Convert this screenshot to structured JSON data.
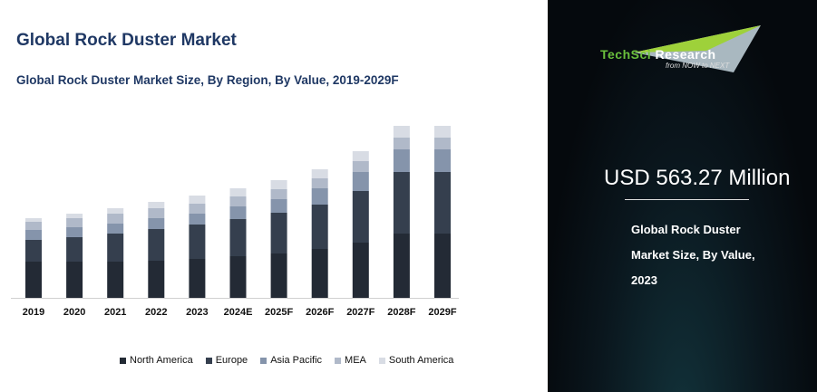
{
  "header": {
    "title": "Global Rock Duster Market",
    "subtitle": "Global Rock Duster Market Size, By Region, By Value, 2019-2029F"
  },
  "chart_data": {
    "type": "bar",
    "stacked": true,
    "title": "Global Rock Duster Market Size, By Region, By Value, 2019-2029F",
    "categories": [
      "2019",
      "2020",
      "2021",
      "2022",
      "2023",
      "2024E",
      "2025F",
      "2026F",
      "2027F",
      "2028F",
      "2029F"
    ],
    "series": [
      {
        "name": "North America",
        "color": "#232a35",
        "values": [
          40,
          40,
          40,
          41,
          43,
          46,
          49,
          54,
          61,
          71,
          71
        ]
      },
      {
        "name": "Europe",
        "color": "#353f4e",
        "values": [
          24,
          27,
          31,
          35,
          38,
          41,
          45,
          49,
          57,
          68,
          68
        ]
      },
      {
        "name": "Asia Pacific",
        "color": "#8594ab",
        "values": [
          11,
          11,
          11,
          12,
          12,
          14,
          15,
          18,
          21,
          25,
          25
        ]
      },
      {
        "name": "MEA",
        "color": "#b0b9c9",
        "values": [
          9,
          10,
          11,
          11,
          11,
          11,
          11,
          11,
          12,
          13,
          13
        ]
      },
      {
        "name": "South America",
        "color": "#d8dce4",
        "values": [
          4,
          5,
          6,
          7,
          9,
          9,
          10,
          10,
          11,
          13,
          13
        ]
      }
    ],
    "yaxis_shown": false,
    "grid": false,
    "legend": "bottom"
  },
  "side": {
    "brand_a": "TechSci",
    "brand_b": " Research",
    "tagline": "from NOW to NEXT",
    "value": "USD 563.27 Million",
    "desc": "Global Rock Duster Market Size, By Value, 2023"
  }
}
